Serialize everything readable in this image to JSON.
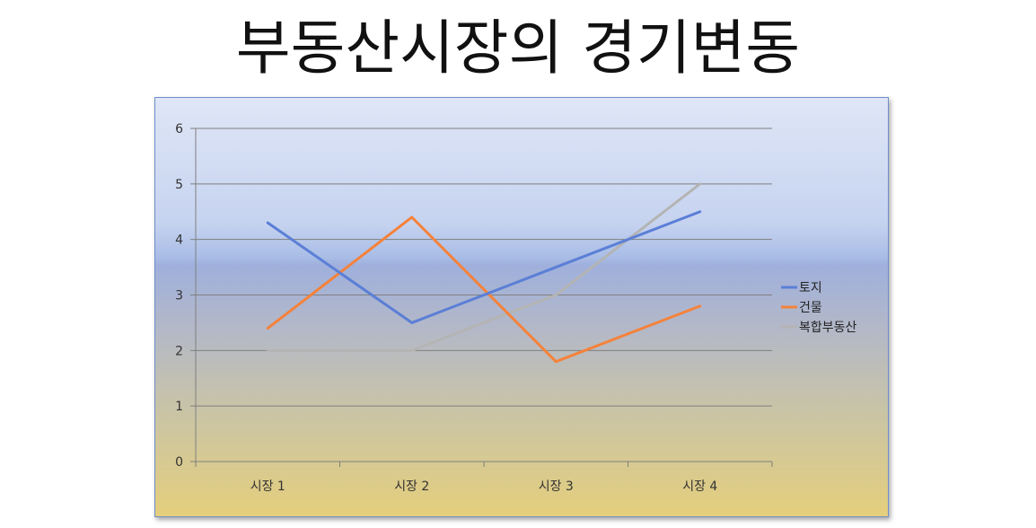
{
  "slide": {
    "title": "부동산시장의 경기변동"
  },
  "chart_data": {
    "type": "line",
    "title": "",
    "categories": [
      "시장 1",
      "시장 2",
      "시장 3",
      "시장 4"
    ],
    "ylim": [
      0,
      6
    ],
    "yticks": [
      "0",
      "1",
      "2",
      "3",
      "4",
      "5",
      "6"
    ],
    "grid": true,
    "legend_position": "right",
    "series": [
      {
        "name": "토지",
        "values": [
          4.3,
          2.5,
          3.5,
          4.5
        ],
        "color": "#5b7fd6"
      },
      {
        "name": "건물",
        "values": [
          2.4,
          4.4,
          1.8,
          2.8
        ],
        "color": "#f5823a"
      },
      {
        "name": "복합부동산",
        "values": [
          2,
          2,
          3,
          5
        ],
        "color": "#b4b4b4"
      }
    ],
    "colors": {
      "grid": "#7f7f7f",
      "axis": "#7f7f7f"
    }
  }
}
